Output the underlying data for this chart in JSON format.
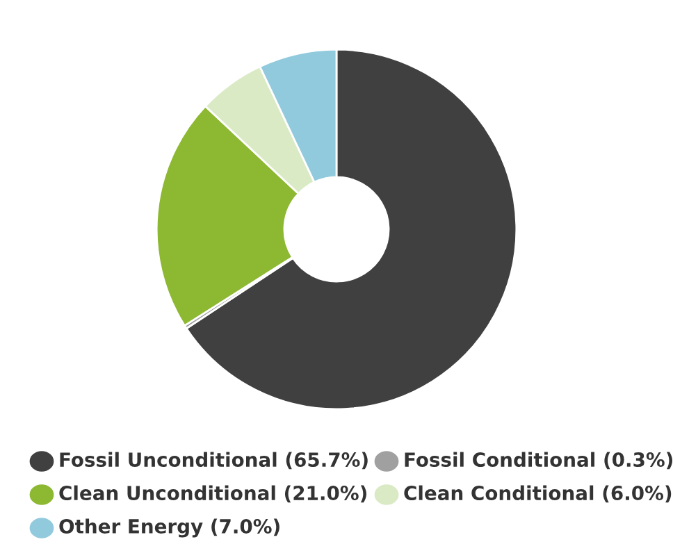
{
  "chart_data": {
    "type": "donut",
    "categories": [
      "Fossil Unconditional (65.7%)",
      "Fossil Conditional (0.3%)",
      "Clean Unconditional (21.0%)",
      "Clean Conditional (6.0%)",
      "Other Energy (7.0%)"
    ],
    "values": [
      65.7,
      0.3,
      21.0,
      6.0,
      7.0
    ],
    "colors": [
      "#404040",
      "#a0a0a0",
      "#8db832",
      "#d9eac4",
      "#92cadd"
    ],
    "legend": "bottom"
  }
}
